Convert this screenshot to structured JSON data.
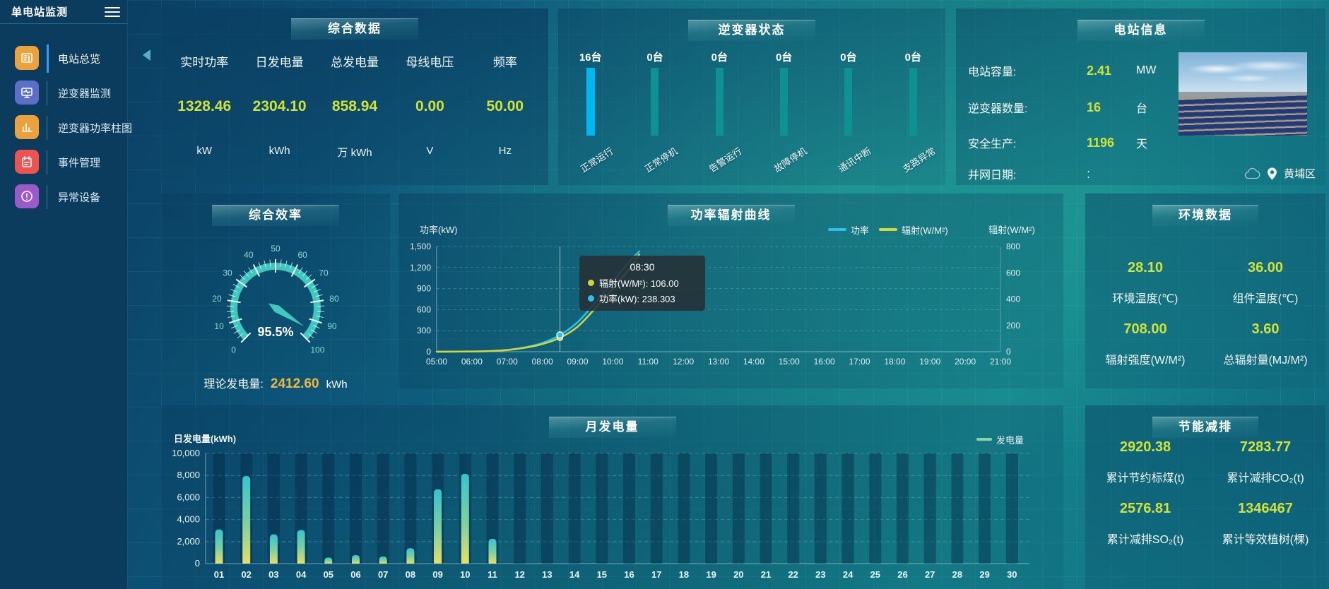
{
  "app": {
    "title": "单电站监测"
  },
  "colors": {
    "accent_value": "#cfe23a",
    "inverter_bar_highlight": "#00b7f3",
    "inverter_bar_normal": "#0f9093",
    "gauge": "#3fc8bd"
  },
  "sidebar": {
    "items": [
      {
        "label": "电站总览",
        "icon": "overview-icon",
        "color": "#eba23d",
        "active": true
      },
      {
        "label": "逆变器监测",
        "icon": "inverter-monitor-icon",
        "color": "#5d6ec9",
        "active": false
      },
      {
        "label": "逆变器功率柱图",
        "icon": "inverter-power-bars-icon",
        "color": "#eba23d",
        "active": false
      },
      {
        "label": "事件管理",
        "icon": "event-management-icon",
        "color": "#ef5350",
        "active": false
      },
      {
        "label": "异常设备",
        "icon": "abnormal-device-icon",
        "color": "#9b59c9",
        "active": false
      }
    ]
  },
  "summary": {
    "title": "综合数据",
    "metrics": [
      {
        "label": "实时功率",
        "value": "1328.46",
        "unit": "kW"
      },
      {
        "label": "日发电量",
        "value": "2304.10",
        "unit": "kWh"
      },
      {
        "label": "总发电量",
        "value": "858.94",
        "unit": "万 kWh"
      },
      {
        "label": "母线电压",
        "value": "0.00",
        "unit": "V"
      },
      {
        "label": "频率",
        "value": "50.00",
        "unit": "Hz"
      }
    ]
  },
  "inverter_status": {
    "title": "逆变器状态",
    "bars": [
      {
        "count": "16台",
        "label": "正常运行",
        "highlight": true
      },
      {
        "count": "0台",
        "label": "正常停机",
        "highlight": false
      },
      {
        "count": "0台",
        "label": "告警运行",
        "highlight": false
      },
      {
        "count": "0台",
        "label": "故障停机",
        "highlight": false
      },
      {
        "count": "0台",
        "label": "通讯中断",
        "highlight": false
      },
      {
        "count": "0台",
        "label": "支路异常",
        "highlight": false
      }
    ]
  },
  "station_info": {
    "title": "电站信息",
    "rows": [
      {
        "label": "电站容量:",
        "value": "2.41",
        "unit": "MW"
      },
      {
        "label": "逆变器数量:",
        "value": "16",
        "unit": "台"
      },
      {
        "label": "安全生产:",
        "value": "1196",
        "unit": "天"
      },
      {
        "label": "并网日期:",
        "value": ":",
        "unit": ""
      }
    ],
    "location": "黄埔区"
  },
  "efficiency": {
    "title": "综合效率",
    "gauge_value_label": "95.5%",
    "theory_label": "理论发电量:",
    "theory_value": "2412.60",
    "theory_unit": "kWh"
  },
  "power_curve": {
    "title": "功率辐射曲线",
    "tooltip": {
      "time": "08:30",
      "rows": [
        {
          "text": "辐射(W/M²): 106.00",
          "color": "#d4d53a"
        },
        {
          "text": "功率(kW): 238.303",
          "color": "#2bc1ef"
        }
      ]
    }
  },
  "environment": {
    "title": "环境数据",
    "metrics": [
      {
        "value": "28.10",
        "label": "环境温度(℃)"
      },
      {
        "value": "36.00",
        "label": "组件温度(℃)"
      },
      {
        "value": "708.00",
        "label": "辐射强度(W/M²)"
      },
      {
        "value": "3.60",
        "label": "总辐射量(MJ/M²)"
      }
    ]
  },
  "monthly": {
    "title": "月发电量"
  },
  "energy_saving": {
    "title": "节能减排",
    "metrics": [
      {
        "value": "2920.38",
        "label": "累计节约标煤(t)"
      },
      {
        "value": "7283.77",
        "label": "累计减排CO₂(t)"
      },
      {
        "value": "2576.81",
        "label": "累计减排SO₂(t)"
      },
      {
        "value": "1346467",
        "label": "累计等效植树(棵)"
      }
    ]
  },
  "chart_data": [
    {
      "type": "gauge",
      "title": "综合效率",
      "value": 95.5,
      "min": 0,
      "max": 100,
      "tick_labels": [
        0,
        10,
        20,
        30,
        40,
        50,
        60,
        70,
        80,
        90,
        100
      ],
      "color": "#3fc8bd"
    },
    {
      "type": "line",
      "title": "功率辐射曲线",
      "x_ticks": [
        "05:00",
        "06:00",
        "07:00",
        "08:00",
        "09:00",
        "10:00",
        "11:00",
        "12:00",
        "13:00",
        "14:00",
        "15:00",
        "16:00",
        "17:00",
        "18:00",
        "19:00",
        "20:00",
        "21:00"
      ],
      "x_range_hours": [
        5,
        21
      ],
      "ylabel_left": "功率(kW)",
      "ylim_left": [
        0,
        1500
      ],
      "yticks_left": [
        0,
        300,
        600,
        900,
        1200,
        1500
      ],
      "ylabel_right": "辐射(W/M²)",
      "ylim_right": [
        0,
        800
      ],
      "yticks_right": [
        0,
        200,
        400,
        600,
        800
      ],
      "legend": [
        {
          "name": "功率",
          "color": "#2bc1ef"
        },
        {
          "name": "辐射(W/M²)",
          "color": "#d4d53a"
        }
      ],
      "grid": true,
      "series": [
        {
          "name": "功率",
          "axis": "left",
          "color": "#2bc1ef",
          "x": [
            5,
            5.5,
            6,
            6.5,
            7,
            7.5,
            8,
            8.5,
            9,
            9.5,
            10,
            10.5,
            10.75
          ],
          "values": [
            0,
            1,
            3,
            8,
            25,
            62,
            125,
            238.3,
            420,
            700,
            1000,
            1300,
            1430
          ]
        },
        {
          "name": "辐射(W/M²)",
          "axis": "right",
          "color": "#d4d53a",
          "x": [
            5,
            5.5,
            6,
            6.5,
            7,
            7.5,
            8,
            8.5,
            9,
            9.5,
            10,
            10.5,
            10.75
          ],
          "values": [
            0,
            1,
            2,
            5,
            13,
            30,
            58,
            106,
            190,
            330,
            480,
            640,
            740
          ]
        }
      ],
      "crosshair_hour": 8.5,
      "marker": {
        "hour": 8.5,
        "power": 238.303,
        "radiation": 106
      }
    },
    {
      "type": "bar",
      "title": "月发电量",
      "ylabel": "日发电量(kWh)",
      "ylim": [
        0,
        10000
      ],
      "yticks": [
        0,
        2000,
        4000,
        6000,
        8000,
        10000
      ],
      "legend": [
        {
          "name": "发电量",
          "color": "#86d7a2"
        }
      ],
      "bar_gradient": [
        "#35c4cf",
        "#7fd0a0",
        "#e6df66"
      ],
      "categories": [
        "01",
        "02",
        "03",
        "04",
        "05",
        "06",
        "07",
        "08",
        "09",
        "10",
        "11",
        "12",
        "13",
        "14",
        "15",
        "16",
        "17",
        "18",
        "19",
        "20",
        "21",
        "22",
        "23",
        "24",
        "25",
        "26",
        "27",
        "28",
        "29",
        "30"
      ],
      "values": [
        3100,
        7950,
        2650,
        3050,
        550,
        780,
        650,
        1400,
        6750,
        8150,
        2250,
        0,
        0,
        0,
        0,
        0,
        0,
        0,
        0,
        0,
        0,
        0,
        0,
        0,
        0,
        0,
        0,
        0,
        0,
        0
      ]
    }
  ]
}
